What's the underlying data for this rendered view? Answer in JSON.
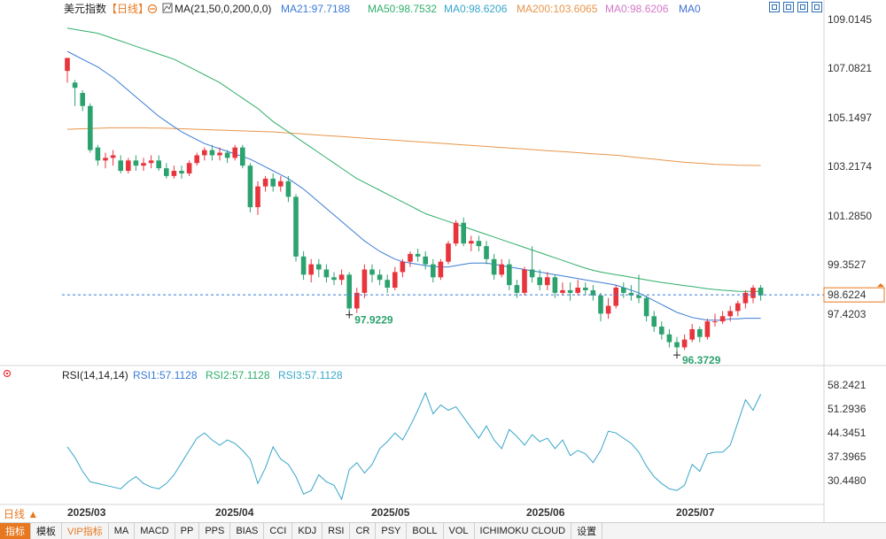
{
  "header": {
    "symbol": "美元指数",
    "period": "【日线】",
    "ma_label": "MA(21,50,0,200,0,0)",
    "ma_values": [
      {
        "text": "MA21:97.7188",
        "color": "#3a7bd5"
      },
      {
        "text": "MA50:98.7532",
        "color": "#2fae6a"
      },
      {
        "text": "MA0:98.6206",
        "color": "#37a6c9"
      },
      {
        "text": "MA200:103.6065",
        "color": "#e8954a"
      },
      {
        "text": "MA0:98.6206",
        "color": "#d477c8"
      },
      {
        "text": "MA0",
        "color": "#3f6fd6"
      }
    ]
  },
  "rsi_header": {
    "label": "RSI(14,14,14)",
    "values": [
      {
        "text": "RSI1:57.1128",
        "color": "#3a7bd5"
      },
      {
        "text": "RSI2:57.1128",
        "color": "#2fae6a"
      },
      {
        "text": "RSI3:57.1128",
        "color": "#37a6c9"
      }
    ]
  },
  "price_axis": [
    "109.0145",
    "107.0821",
    "105.1497",
    "103.2174",
    "101.2850",
    "99.3527",
    "97.4203"
  ],
  "rsi_axis": [
    "58.2421",
    "51.2936",
    "44.3451",
    "37.3965",
    "30.4480"
  ],
  "x_axis": [
    "2025/03",
    "2025/04",
    "2025/05",
    "2025/06",
    "2025/07"
  ],
  "current_price": "98.6224",
  "annotations": {
    "low1": "97.9229",
    "low2": "96.3729"
  },
  "bottom_bar": {
    "period_tag": "日线 ▲",
    "items": [
      "指标",
      "模板",
      "VIP指标",
      "MA",
      "MACD",
      "PP",
      "PPS",
      "BIAS",
      "CCI",
      "KDJ",
      "RSI",
      "CR",
      "PSY",
      "BOLL",
      "VOL",
      "ICHIMOKU CLOUD",
      "设置"
    ]
  },
  "colors": {
    "up": "#e8343c",
    "down": "#2ca26e",
    "ma21": "#3a7bd5",
    "ma50": "#2fae6a",
    "ma200": "#e8954a",
    "rsi": "#37a6c9",
    "price_tag": "#e8781f"
  },
  "chart_data": {
    "type": "candlestick",
    "title": "美元指数 【日线】",
    "y_ticks": [
      109.0145,
      107.0821,
      105.1497,
      103.2174,
      101.285,
      99.3527,
      97.4203
    ],
    "ylim": [
      95.9,
      109.3
    ],
    "rsi_ylim": [
      25.5,
      60.5
    ],
    "rsi_ticks": [
      58.2421,
      51.2936,
      44.3451,
      37.3965,
      30.448
    ],
    "x_tick_indices": [
      0,
      21,
      42,
      63,
      84
    ],
    "candles": [
      [
        107.25,
        107.75,
        107.4,
        106.8
      ],
      [
        106.8,
        106.6,
        106.9,
        105.9
      ],
      [
        106.4,
        105.9,
        106.5,
        105.7
      ],
      [
        105.9,
        104.2,
        106.0,
        104.1
      ],
      [
        104.3,
        103.8,
        104.4,
        103.6
      ],
      [
        103.8,
        103.9,
        104.1,
        103.5
      ],
      [
        103.9,
        104.0,
        104.2,
        103.6
      ],
      [
        103.8,
        103.4,
        104.0,
        103.3
      ],
      [
        103.4,
        103.8,
        103.9,
        103.3
      ],
      [
        103.8,
        103.6,
        104.0,
        103.4
      ],
      [
        103.6,
        103.7,
        103.9,
        103.4
      ],
      [
        103.7,
        103.8,
        104.0,
        103.5
      ],
      [
        103.8,
        103.5,
        104.0,
        103.4
      ],
      [
        103.5,
        103.2,
        103.7,
        103.1
      ],
      [
        103.2,
        103.4,
        103.6,
        103.1
      ],
      [
        103.4,
        103.3,
        103.6,
        103.1
      ],
      [
        103.3,
        103.7,
        103.8,
        103.2
      ],
      [
        103.7,
        104.0,
        104.1,
        103.6
      ],
      [
        104.0,
        104.2,
        104.3,
        103.8
      ],
      [
        104.2,
        104.0,
        104.4,
        103.8
      ],
      [
        104.0,
        104.1,
        104.3,
        103.8
      ],
      [
        104.1,
        103.9,
        104.2,
        103.7
      ],
      [
        103.9,
        104.3,
        104.4,
        103.8
      ],
      [
        104.3,
        103.6,
        104.4,
        103.5
      ],
      [
        103.6,
        102.0,
        103.7,
        101.8
      ],
      [
        102.0,
        102.8,
        103.0,
        101.7
      ],
      [
        102.8,
        103.1,
        103.2,
        102.6
      ],
      [
        103.1,
        102.8,
        103.3,
        102.6
      ],
      [
        102.8,
        103.0,
        103.2,
        102.6
      ],
      [
        103.0,
        102.4,
        103.2,
        102.2
      ],
      [
        102.4,
        100.1,
        102.5,
        99.9
      ],
      [
        100.1,
        99.4,
        100.3,
        99.2
      ],
      [
        99.4,
        99.8,
        100.0,
        99.1
      ],
      [
        99.8,
        99.6,
        100.0,
        99.3
      ],
      [
        99.6,
        99.3,
        99.8,
        99.1
      ],
      [
        99.3,
        99.2,
        99.5,
        99.0
      ],
      [
        99.2,
        99.4,
        99.6,
        99.0
      ],
      [
        99.4,
        98.1,
        99.5,
        97.92
      ],
      [
        98.1,
        98.7,
        98.9,
        97.92
      ],
      [
        98.7,
        99.6,
        99.8,
        98.5
      ],
      [
        99.6,
        99.4,
        99.8,
        99.1
      ],
      [
        99.4,
        99.2,
        99.6,
        99.0
      ],
      [
        99.2,
        98.9,
        99.4,
        98.7
      ],
      [
        98.9,
        99.5,
        99.7,
        98.8
      ],
      [
        99.5,
        99.9,
        100.0,
        99.3
      ],
      [
        99.9,
        100.2,
        100.3,
        99.7
      ],
      [
        100.2,
        100.1,
        100.4,
        99.9
      ],
      [
        100.1,
        99.8,
        100.3,
        99.6
      ],
      [
        99.8,
        99.3,
        100.0,
        99.1
      ],
      [
        99.3,
        99.9,
        100.0,
        99.2
      ],
      [
        99.9,
        100.6,
        100.7,
        99.8
      ],
      [
        100.6,
        101.4,
        101.5,
        100.5
      ],
      [
        101.4,
        100.6,
        101.6,
        100.5
      ],
      [
        100.6,
        100.7,
        100.9,
        100.3
      ],
      [
        100.7,
        100.5,
        100.9,
        100.3
      ],
      [
        100.5,
        100.0,
        100.7,
        99.8
      ],
      [
        100.0,
        99.4,
        100.2,
        99.2
      ],
      [
        99.4,
        99.8,
        100.0,
        99.3
      ],
      [
        99.8,
        99.0,
        100.0,
        98.8
      ],
      [
        99.0,
        98.7,
        99.2,
        98.5
      ],
      [
        98.7,
        99.6,
        99.7,
        98.6
      ],
      [
        99.6,
        99.3,
        100.5,
        99.1
      ],
      [
        99.3,
        99.0,
        99.6,
        98.8
      ],
      [
        99.0,
        99.3,
        99.5,
        98.8
      ],
      [
        99.3,
        98.7,
        99.4,
        98.5
      ],
      [
        98.7,
        98.8,
        99.1,
        98.6
      ],
      [
        98.8,
        98.7,
        99.1,
        98.4
      ],
      [
        98.7,
        98.9,
        99.2,
        98.6
      ],
      [
        98.9,
        98.8,
        99.1,
        98.6
      ],
      [
        98.8,
        98.6,
        99.0,
        98.4
      ],
      [
        98.6,
        97.9,
        98.7,
        97.6
      ],
      [
        97.9,
        98.2,
        98.5,
        97.7
      ],
      [
        98.2,
        98.9,
        99.0,
        98.1
      ],
      [
        98.9,
        98.7,
        99.1,
        98.5
      ],
      [
        98.7,
        98.6,
        99.0,
        98.4
      ],
      [
        98.6,
        98.5,
        99.4,
        98.3
      ],
      [
        98.5,
        97.8,
        98.6,
        97.6
      ],
      [
        97.8,
        97.4,
        98.0,
        97.2
      ],
      [
        97.4,
        97.1,
        97.6,
        96.9
      ],
      [
        97.1,
        96.8,
        97.3,
        96.6
      ],
      [
        96.8,
        96.6,
        97.0,
        96.373
      ],
      [
        96.6,
        96.9,
        97.1,
        96.5
      ],
      [
        96.9,
        97.3,
        97.5,
        96.8
      ],
      [
        97.3,
        97.0,
        97.4,
        96.8
      ],
      [
        97.0,
        97.6,
        97.7,
        96.9
      ],
      [
        97.6,
        97.6,
        97.9,
        97.4
      ],
      [
        97.6,
        97.8,
        98.0,
        97.5
      ],
      [
        97.8,
        98.0,
        98.2,
        97.6
      ],
      [
        98.0,
        98.3,
        98.4,
        97.8
      ],
      [
        98.3,
        98.7,
        98.8,
        98.1
      ],
      [
        98.5,
        98.9,
        99.0,
        98.3
      ],
      [
        98.9,
        98.6,
        99.0,
        98.4
      ]
    ],
    "ma21": [
      108.0,
      107.85,
      107.7,
      107.55,
      107.4,
      107.2,
      107.0,
      106.75,
      106.5,
      106.25,
      106.0,
      105.75,
      105.5,
      105.3,
      105.1,
      104.9,
      104.75,
      104.6,
      104.45,
      104.35,
      104.25,
      104.15,
      104.05,
      103.95,
      103.85,
      103.7,
      103.55,
      103.4,
      103.25,
      103.1,
      102.9,
      102.7,
      102.45,
      102.2,
      101.95,
      101.7,
      101.45,
      101.2,
      100.95,
      100.7,
      100.5,
      100.3,
      100.15,
      100.0,
      99.9,
      99.85,
      99.8,
      99.75,
      99.72,
      99.7,
      99.7,
      99.75,
      99.8,
      99.85,
      99.85,
      99.85,
      99.8,
      99.75,
      99.7,
      99.65,
      99.6,
      99.55,
      99.5,
      99.45,
      99.4,
      99.35,
      99.3,
      99.25,
      99.2,
      99.15,
      99.1,
      99.05,
      99.0,
      98.9,
      98.8,
      98.7,
      98.55,
      98.4,
      98.25,
      98.1,
      97.95,
      97.85,
      97.75,
      97.7,
      97.65,
      97.65,
      97.65,
      97.7,
      97.7,
      97.72,
      97.72,
      97.72
    ],
    "ma50": [
      108.9,
      108.85,
      108.8,
      108.75,
      108.7,
      108.6,
      108.5,
      108.4,
      108.3,
      108.2,
      108.1,
      108.0,
      107.9,
      107.8,
      107.7,
      107.55,
      107.4,
      107.25,
      107.1,
      106.95,
      106.8,
      106.6,
      106.4,
      106.2,
      106.0,
      105.8,
      105.55,
      105.3,
      105.1,
      104.9,
      104.7,
      104.5,
      104.3,
      104.1,
      103.9,
      103.7,
      103.5,
      103.3,
      103.1,
      102.95,
      102.8,
      102.65,
      102.5,
      102.35,
      102.2,
      102.05,
      101.9,
      101.75,
      101.65,
      101.55,
      101.45,
      101.35,
      101.25,
      101.15,
      101.05,
      100.95,
      100.85,
      100.75,
      100.65,
      100.55,
      100.45,
      100.35,
      100.25,
      100.15,
      100.05,
      99.95,
      99.85,
      99.75,
      99.65,
      99.57,
      99.5,
      99.45,
      99.4,
      99.35,
      99.3,
      99.25,
      99.2,
      99.15,
      99.1,
      99.06,
      99.02,
      98.98,
      98.94,
      98.9,
      98.86,
      98.83,
      98.8,
      98.78,
      98.76,
      98.755,
      98.753,
      98.753
    ],
    "ma200": [
      105.0,
      105.01,
      105.02,
      105.03,
      105.04,
      105.05,
      105.06,
      105.06,
      105.06,
      105.06,
      105.06,
      105.05,
      105.05,
      105.04,
      105.03,
      105.02,
      105.01,
      105.0,
      104.99,
      104.98,
      104.97,
      104.96,
      104.95,
      104.94,
      104.93,
      104.92,
      104.91,
      104.9,
      104.88,
      104.86,
      104.84,
      104.82,
      104.8,
      104.78,
      104.76,
      104.74,
      104.72,
      104.7,
      104.68,
      104.66,
      104.64,
      104.62,
      104.6,
      104.58,
      104.56,
      104.54,
      104.52,
      104.5,
      104.48,
      104.46,
      104.44,
      104.42,
      104.4,
      104.38,
      104.36,
      104.34,
      104.32,
      104.3,
      104.28,
      104.26,
      104.24,
      104.22,
      104.2,
      104.18,
      104.16,
      104.14,
      104.12,
      104.1,
      104.08,
      104.06,
      104.04,
      104.02,
      104.0,
      103.97,
      103.94,
      103.91,
      103.88,
      103.85,
      103.82,
      103.79,
      103.76,
      103.73,
      103.71,
      103.69,
      103.67,
      103.65,
      103.64,
      103.63,
      103.62,
      103.615,
      103.61,
      103.6065
    ],
    "rsi": [
      42.0,
      39.0,
      35.0,
      32.0,
      31.5,
      31.0,
      30.5,
      30.0,
      32.0,
      33.5,
      31.5,
      30.5,
      30.0,
      31.5,
      34.0,
      37.5,
      41.0,
      44.5,
      46.0,
      44.0,
      42.5,
      44.0,
      43.0,
      41.0,
      38.5,
      31.5,
      36.0,
      42.0,
      38.5,
      37.0,
      33.5,
      28.5,
      29.5,
      34.0,
      32.0,
      31.0,
      27.0,
      35.5,
      37.5,
      34.5,
      37.0,
      41.5,
      43.5,
      46.0,
      44.0,
      48.0,
      52.5,
      57.5,
      51.5,
      54.0,
      52.5,
      53.5,
      50.5,
      47.5,
      44.5,
      48.0,
      44.0,
      41.5,
      47.0,
      45.0,
      42.5,
      45.5,
      43.5,
      44.5,
      41.5,
      44.0,
      39.5,
      41.0,
      40.0,
      37.5,
      41.0,
      46.5,
      46.0,
      44.5,
      43.0,
      40.5,
      36.5,
      33.5,
      31.5,
      30.0,
      29.5,
      31.0,
      37.0,
      35.0,
      40.0,
      40.5,
      40.5,
      42.5,
      49.0,
      55.5,
      52.5,
      57.1
    ]
  }
}
